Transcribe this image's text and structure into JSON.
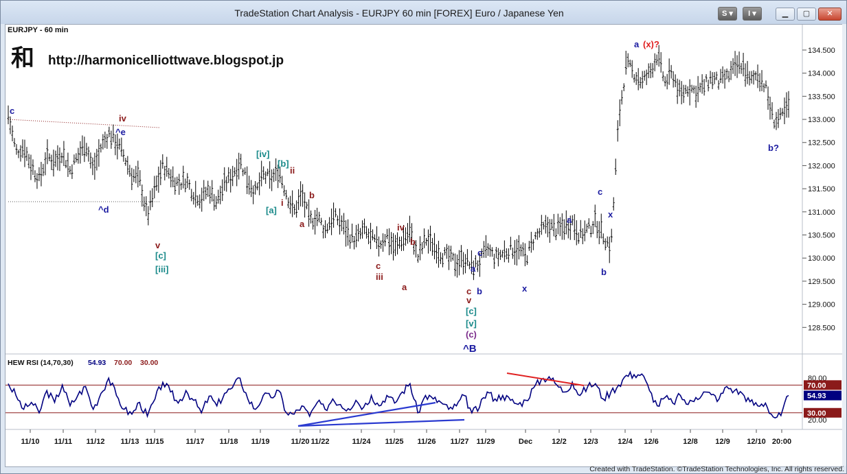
{
  "window": {
    "title": "TradeStation Chart Analysis - EURJPY 60 min [FOREX] Euro / Japanese Yen",
    "toolbar_s": "S",
    "toolbar_i": "I",
    "footer": "Created with TradeStation. ©TradeStation Technologies, Inc. All rights reserved."
  },
  "chart": {
    "symbol_label": "EURJPY - 60 min",
    "logo_glyph": "和",
    "blog_url": "http://harmonicelliottwave.blogspot.jp"
  },
  "colors": {
    "price_bars": "#000000",
    "indicator_line": "#000080",
    "wave_dark_red": "#8b1a1a",
    "wave_blue": "#1a1aa0",
    "wave_teal": "#1a8a8a",
    "wave_purple": "#7a2a8a",
    "divergence_red": "#e02020",
    "divergence_blue": "#2a3ad0",
    "level70_box": "#8b1a1a",
    "current_box": "#000080"
  },
  "chart_data": {
    "type": "ohlc",
    "title": "EURJPY - 60 min",
    "y_axis": {
      "min": 128.0,
      "max": 134.9,
      "ticks": [
        "128.500",
        "129.000",
        "129.500",
        "130.000",
        "130.500",
        "131.000",
        "131.500",
        "132.000",
        "132.500",
        "133.000",
        "133.500",
        "134.000",
        "134.500"
      ]
    },
    "x_tick_labels": [
      "11/10",
      "11/11",
      "11/12",
      "11/13",
      "11/15",
      "11/17",
      "11/18",
      "11/19",
      "11/20",
      "11/22",
      "11/24",
      "11/25",
      "11/26",
      "11/27",
      "11/29",
      "Dec",
      "12/2",
      "12/3",
      "12/4",
      "12/6",
      "12/8",
      "12/9",
      "12/10",
      "20:00"
    ],
    "price_path": [
      [
        0,
        133.1
      ],
      [
        1,
        132.3
      ],
      [
        2,
        132.4
      ],
      [
        3,
        132.0
      ],
      [
        4,
        131.7
      ],
      [
        5,
        132.2
      ],
      [
        6,
        132.1
      ],
      [
        7,
        132.3
      ],
      [
        8,
        131.9
      ],
      [
        9,
        132.2
      ],
      [
        10,
        132.5
      ],
      [
        11,
        131.9
      ],
      [
        12,
        132.4
      ],
      [
        13,
        132.7
      ],
      [
        14,
        132.5
      ],
      [
        15,
        132.2
      ],
      [
        16,
        131.8
      ],
      [
        17,
        131.7
      ],
      [
        18,
        130.9
      ],
      [
        19,
        131.5
      ],
      [
        20,
        132.0
      ],
      [
        21,
        131.8
      ],
      [
        22,
        131.6
      ],
      [
        23,
        131.7
      ],
      [
        24,
        131.4
      ],
      [
        25,
        131.3
      ],
      [
        26,
        131.5
      ],
      [
        27,
        131.2
      ],
      [
        28,
        131.6
      ],
      [
        29,
        131.8
      ],
      [
        30,
        132.1
      ],
      [
        31,
        131.7
      ],
      [
        32,
        131.4
      ],
      [
        33,
        131.8
      ],
      [
        34,
        131.7
      ],
      [
        35,
        131.9
      ],
      [
        36,
        131.4
      ],
      [
        37,
        131.0
      ],
      [
        38,
        131.4
      ],
      [
        39,
        130.8
      ],
      [
        40,
        130.9
      ],
      [
        41,
        130.6
      ],
      [
        42,
        130.9
      ],
      [
        43,
        130.8
      ],
      [
        44,
        130.5
      ],
      [
        45,
        130.4
      ],
      [
        46,
        130.6
      ],
      [
        47,
        130.4
      ],
      [
        48,
        130.3
      ],
      [
        49,
        130.5
      ],
      [
        50,
        130.2
      ],
      [
        51,
        130.4
      ],
      [
        52,
        130.6
      ],
      [
        53,
        130.0
      ],
      [
        54,
        130.4
      ],
      [
        55,
        130.3
      ],
      [
        56,
        130.1
      ],
      [
        57,
        130.0
      ],
      [
        58,
        129.9
      ],
      [
        59,
        130.0
      ],
      [
        60,
        129.8
      ],
      [
        61,
        129.9
      ],
      [
        62,
        130.2
      ],
      [
        63,
        130.0
      ],
      [
        64,
        130.1
      ],
      [
        65,
        130.2
      ],
      [
        66,
        130.2
      ],
      [
        67,
        130.0
      ],
      [
        68,
        130.4
      ],
      [
        69,
        130.6
      ],
      [
        70,
        130.7
      ],
      [
        71,
        130.6
      ],
      [
        72,
        130.7
      ],
      [
        73,
        130.8
      ],
      [
        74,
        130.5
      ],
      [
        75,
        130.6
      ],
      [
        76,
        130.8
      ],
      [
        77,
        130.5
      ],
      [
        78,
        130.2
      ],
      [
        79,
        133.0
      ],
      [
        80,
        134.2
      ],
      [
        81,
        134.0
      ],
      [
        82,
        133.8
      ],
      [
        83,
        134.0
      ],
      [
        84,
        134.4
      ],
      [
        85,
        133.8
      ],
      [
        86,
        134.0
      ],
      [
        87,
        133.5
      ],
      [
        88,
        133.7
      ],
      [
        89,
        133.6
      ],
      [
        90,
        133.7
      ],
      [
        91,
        133.9
      ],
      [
        92,
        133.8
      ],
      [
        93,
        133.9
      ],
      [
        94,
        134.1
      ],
      [
        95,
        134.2
      ],
      [
        96,
        133.8
      ],
      [
        97,
        134.0
      ],
      [
        98,
        133.7
      ],
      [
        99,
        133.0
      ],
      [
        100,
        133.0
      ],
      [
        101,
        133.3
      ]
    ],
    "annotations": [
      {
        "text": "c",
        "color": "blue"
      },
      {
        "text": "iv",
        "color": "dark_red"
      },
      {
        "text": "^e",
        "color": "blue"
      },
      {
        "text": "^d",
        "color": "blue"
      },
      {
        "text": "v",
        "color": "dark_red"
      },
      {
        "text": "[c]",
        "color": "teal"
      },
      {
        "text": "[iii]",
        "color": "teal"
      },
      {
        "text": "[iv]",
        "color": "teal"
      },
      {
        "text": "[b]",
        "color": "teal"
      },
      {
        "text": "ii",
        "color": "dark_red"
      },
      {
        "text": "i",
        "color": "dark_red"
      },
      {
        "text": "[a]",
        "color": "teal"
      },
      {
        "text": "b",
        "color": "dark_red"
      },
      {
        "text": "a",
        "color": "dark_red"
      },
      {
        "text": "iv",
        "color": "dark_red"
      },
      {
        "text": "b",
        "color": "dark_red"
      },
      {
        "text": "c",
        "color": "dark_red"
      },
      {
        "text": "iii",
        "color": "dark_red"
      },
      {
        "text": "a",
        "color": "dark_red"
      },
      {
        "text": "c",
        "color": "blue"
      },
      {
        "text": "a",
        "color": "blue"
      },
      {
        "text": "c",
        "color": "dark_red"
      },
      {
        "text": "b",
        "color": "blue"
      },
      {
        "text": "v",
        "color": "dark_red"
      },
      {
        "text": "[c]",
        "color": "teal"
      },
      {
        "text": "[v]",
        "color": "teal"
      },
      {
        "text": "(c)",
        "color": "purple"
      },
      {
        "text": "^B",
        "color": "blue"
      },
      {
        "text": "x",
        "color": "blue"
      },
      {
        "text": "a",
        "color": "blue"
      },
      {
        "text": "c",
        "color": "blue"
      },
      {
        "text": "x",
        "color": "blue"
      },
      {
        "text": "b",
        "color": "blue"
      },
      {
        "text": "a",
        "color": "blue"
      },
      {
        "text": "(x)?",
        "color": "red"
      },
      {
        "text": "b?",
        "color": "blue"
      }
    ],
    "indicator": {
      "name": "HEW RSI (14,70,30)",
      "current": "54.93",
      "upper": "70.00",
      "lower": "30.00",
      "y_ticks": [
        "20.00",
        "80.00"
      ],
      "y_range": [
        10,
        100
      ],
      "values": [
        [
          0,
          72
        ],
        [
          1,
          55
        ],
        [
          2,
          35
        ],
        [
          3,
          45
        ],
        [
          4,
          30
        ],
        [
          5,
          62
        ],
        [
          6,
          45
        ],
        [
          7,
          70
        ],
        [
          8,
          40
        ],
        [
          9,
          55
        ],
        [
          10,
          68
        ],
        [
          11,
          35
        ],
        [
          12,
          58
        ],
        [
          13,
          80
        ],
        [
          14,
          55
        ],
        [
          15,
          35
        ],
        [
          16,
          28
        ],
        [
          17,
          45
        ],
        [
          18,
          25
        ],
        [
          19,
          50
        ],
        [
          20,
          74
        ],
        [
          21,
          60
        ],
        [
          22,
          44
        ],
        [
          23,
          62
        ],
        [
          24,
          48
        ],
        [
          25,
          30
        ],
        [
          26,
          54
        ],
        [
          27,
          40
        ],
        [
          28,
          58
        ],
        [
          29,
          66
        ],
        [
          30,
          80
        ],
        [
          31,
          50
        ],
        [
          32,
          35
        ],
        [
          33,
          55
        ],
        [
          34,
          52
        ],
        [
          35,
          62
        ],
        [
          36,
          30
        ],
        [
          37,
          28
        ],
        [
          38,
          40
        ],
        [
          39,
          25
        ],
        [
          40,
          45
        ],
        [
          41,
          35
        ],
        [
          42,
          50
        ],
        [
          43,
          42
        ],
        [
          44,
          36
        ],
        [
          45,
          48
        ],
        [
          46,
          38
        ],
        [
          47,
          55
        ],
        [
          48,
          40
        ],
        [
          49,
          55
        ],
        [
          50,
          44
        ],
        [
          51,
          60
        ],
        [
          52,
          72
        ],
        [
          53,
          30
        ],
        [
          54,
          55
        ],
        [
          55,
          50
        ],
        [
          56,
          45
        ],
        [
          57,
          35
        ],
        [
          58,
          40
        ],
        [
          59,
          55
        ],
        [
          60,
          30
        ],
        [
          61,
          38
        ],
        [
          62,
          60
        ],
        [
          63,
          50
        ],
        [
          64,
          55
        ],
        [
          65,
          48
        ],
        [
          66,
          42
        ],
        [
          67,
          48
        ],
        [
          68,
          66
        ],
        [
          69,
          78
        ],
        [
          70,
          82
        ],
        [
          71,
          70
        ],
        [
          72,
          60
        ],
        [
          73,
          74
        ],
        [
          74,
          55
        ],
        [
          75,
          68
        ],
        [
          76,
          72
        ],
        [
          77,
          50
        ],
        [
          78,
          60
        ],
        [
          79,
          70
        ],
        [
          80,
          84
        ],
        [
          81,
          85
        ],
        [
          82,
          86
        ],
        [
          83,
          62
        ],
        [
          84,
          40
        ],
        [
          85,
          52
        ],
        [
          86,
          44
        ],
        [
          87,
          55
        ],
        [
          88,
          42
        ],
        [
          89,
          52
        ],
        [
          90,
          60
        ],
        [
          91,
          56
        ],
        [
          92,
          50
        ],
        [
          93,
          68
        ],
        [
          94,
          62
        ],
        [
          95,
          58
        ],
        [
          96,
          46
        ],
        [
          97,
          40
        ],
        [
          98,
          44
        ],
        [
          99,
          24
        ],
        [
          100,
          26
        ],
        [
          101,
          55
        ]
      ]
    }
  }
}
